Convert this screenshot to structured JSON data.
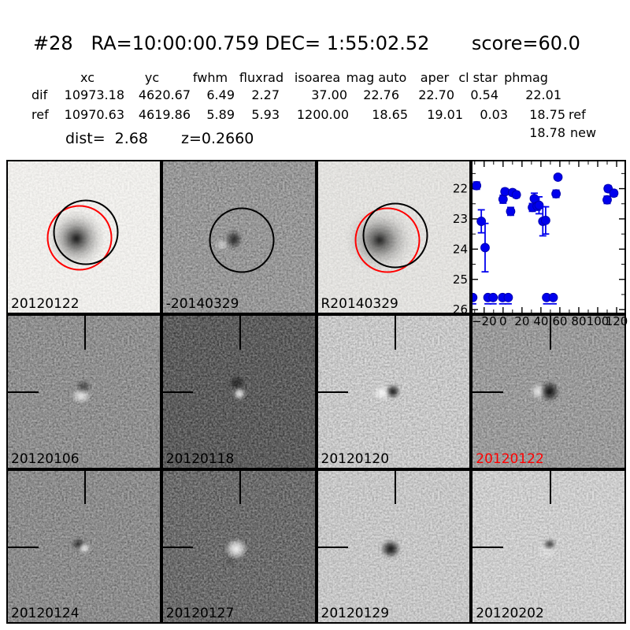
{
  "header": {
    "title": "#28   RA=10:00:00.759 DEC= 1:55:02.52       score=60.0",
    "candidate_id": "#28",
    "ra": "10:00:00.759",
    "dec": "1:55:02.52",
    "score": "60.0"
  },
  "photometry": {
    "columns": [
      "xc",
      "yc",
      "fwhm",
      "fluxrad",
      "isoarea",
      "mag auto",
      "aper",
      "cl star",
      "phmag"
    ],
    "rows": [
      {
        "label": "dif",
        "xc": "10973.18",
        "yc": "4620.67",
        "fwhm": "6.49",
        "fluxrad": "2.27",
        "isoarea": "37.00",
        "mag_auto": "22.76",
        "aper": "22.70",
        "cl_star": "0.54",
        "phmag": "22.01",
        "suffix": ""
      },
      {
        "label": "ref",
        "xc": "10970.63",
        "yc": "4619.86",
        "fwhm": "5.89",
        "fluxrad": "5.93",
        "isoarea": "1200.00",
        "mag_auto": "18.65",
        "aper": "19.01",
        "cl_star": "0.03",
        "phmag": "18.75",
        "suffix": "ref"
      }
    ],
    "extra": {
      "phmag": "18.78",
      "suffix": "new"
    },
    "dist_label": "dist=  2.68",
    "z_label": "z=0.2660"
  },
  "cutouts": {
    "row1": [
      {
        "label": "20120122"
      },
      {
        "label": "-20140329"
      },
      {
        "label": "R20140329"
      }
    ],
    "row2": [
      {
        "label": "20120106"
      },
      {
        "label": "20120118"
      },
      {
        "label": "20120120"
      },
      {
        "label": "20120122",
        "highlight": "red"
      }
    ],
    "row3": [
      {
        "label": "20120124"
      },
      {
        "label": "20120127"
      },
      {
        "label": "20120129"
      },
      {
        "label": "20120202"
      }
    ]
  },
  "chart_data": {
    "type": "scatter",
    "title": "",
    "xlabel": "",
    "ylabel": "",
    "xlim": [
      -32.3,
      128.3
    ],
    "ylim": [
      21.1,
      26.1
    ],
    "y_axis_inverted_magnitudes": true,
    "grid": false,
    "xtick_values": [
      -20,
      0,
      20,
      40,
      60,
      80,
      100,
      120
    ],
    "xtick_labels": [
      "−20",
      "0",
      "20",
      "40",
      "60",
      "80",
      "100",
      "120"
    ],
    "ytick_values": [
      22,
      23,
      24,
      25,
      26
    ],
    "ytick_labels": [
      "22",
      "23",
      "24",
      "25",
      "26"
    ],
    "x_minor_step": 10,
    "y_minor_step": 0.5,
    "marker_color": "#0000ee",
    "marker_edge_color": "#0000b0",
    "detections_x_mag_err": [
      [
        -28,
        21.9,
        0.12
      ],
      [
        -23,
        23.08,
        0.38
      ],
      [
        -19,
        23.95,
        0.8
      ],
      [
        0,
        22.35,
        0.13
      ],
      [
        2,
        22.1,
        0.1
      ],
      [
        8,
        22.75,
        0.13
      ],
      [
        10,
        22.13,
        0.1
      ],
      [
        14,
        22.2,
        0.1
      ],
      [
        31,
        22.62,
        0.13
      ],
      [
        33,
        22.33,
        0.18
      ],
      [
        36,
        22.58,
        0.13
      ],
      [
        38,
        22.55,
        0.28
      ],
      [
        42,
        23.08,
        0.48
      ],
      [
        45,
        23.05,
        0.45
      ],
      [
        56,
        22.17,
        0.12
      ],
      [
        58,
        21.62,
        0.08
      ],
      [
        110,
        22.37,
        0.12
      ],
      [
        111,
        22.0,
        0.1
      ],
      [
        117,
        22.15,
        0.1
      ]
    ],
    "upper_limit_mag": 25.6,
    "upper_limits_x": [
      -32,
      -16,
      -10.5,
      -0.5,
      5.5,
      46,
      53
    ]
  }
}
